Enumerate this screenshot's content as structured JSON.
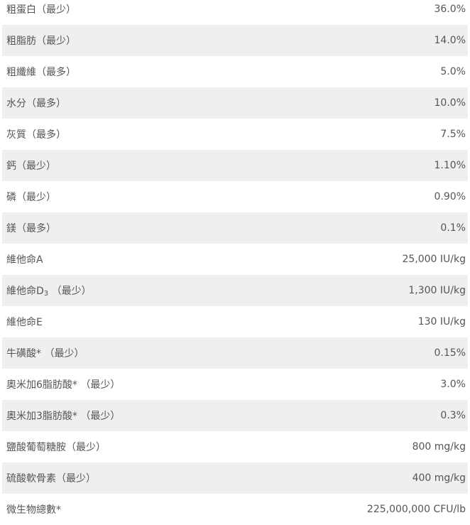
{
  "colors": {
    "text": "#555555",
    "row_alt": "#efefef",
    "row": "#ffffff"
  },
  "rows": [
    {
      "name": "粗蛋白（最少）",
      "value": "36.0%"
    },
    {
      "name": "粗脂肪（最少）",
      "value": "14.0%"
    },
    {
      "name": "粗纖維（最多）",
      "value": "5.0%"
    },
    {
      "name": "水分（最多）",
      "value": "10.0%"
    },
    {
      "name": "灰質（最多）",
      "value": "7.5%"
    },
    {
      "name": "鈣（最少）",
      "value": "1.10%"
    },
    {
      "name": "磷（最少）",
      "value": "0.90%"
    },
    {
      "name": "鎂（最多）",
      "value": "0.1%"
    },
    {
      "name": "維他命A",
      "value": "25,000 IU/kg"
    },
    {
      "name": "維他命D",
      "sub": "3",
      "suffix": " （最少）",
      "value": "1,300 IU/kg"
    },
    {
      "name": "維他命E",
      "value": "130 IU/kg"
    },
    {
      "name": "牛磺酸* （最少）",
      "value": "0.15%"
    },
    {
      "name": "奧米加6脂肪酸* （最少）",
      "value": "3.0%"
    },
    {
      "name": "奧米加3脂肪酸* （最少）",
      "value": "0.3%"
    },
    {
      "name": "鹽酸葡萄糖胺（最少）",
      "value": "800 mg/kg"
    },
    {
      "name": "硫酸軟骨素（最少）",
      "value": "400 mg/kg"
    },
    {
      "name": "微生物總數*",
      "value": "225,000,000 CFU/lb"
    }
  ]
}
